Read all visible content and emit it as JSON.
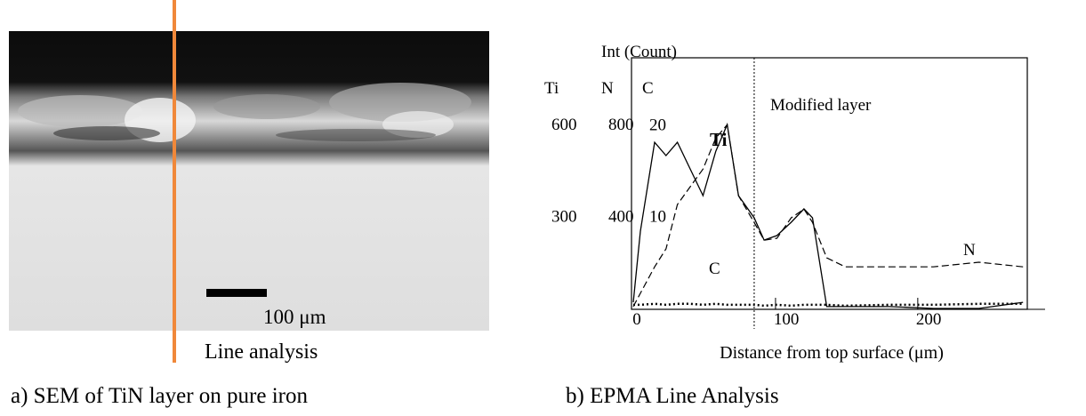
{
  "panel_a": {
    "scale_bar": "100 μm",
    "line_label": "Line analysis",
    "caption": "a) SEM of TiN layer on pure iron"
  },
  "panel_b": {
    "caption": "b) EPMA Line Analysis"
  },
  "chart_data": {
    "type": "line",
    "y_header": "Int (Count)",
    "xlabel": "Distance from top surface (μm)",
    "xlim": [
      0,
      277
    ],
    "xticks": [
      0,
      100,
      200
    ],
    "ylim": [
      0,
      818
    ],
    "yticks": [
      300,
      600
    ],
    "y2lim": [
      0,
      1090
    ],
    "y2ticks": [
      400,
      800
    ],
    "y3lim": [
      0,
      27.3
    ],
    "y3ticks": [
      10,
      20
    ],
    "annotation": {
      "text": "Modified layer",
      "x": 85
    },
    "x": [
      0,
      5,
      15,
      23,
      31,
      40,
      49,
      58,
      66,
      74,
      85,
      92,
      101,
      111,
      120,
      126,
      136,
      149,
      180,
      211,
      243,
      274
    ],
    "series": [
      {
        "name": "Ti",
        "axis": "y",
        "color": "#000000",
        "style": "solid",
        "values": [
          20,
          252,
          542,
          499,
          542,
          455,
          368,
          513,
          600,
          368,
          296,
          223,
          238,
          281,
          325,
          296,
          6,
          6,
          6,
          0,
          0,
          20
        ]
      },
      {
        "name": "N",
        "axis": "y2",
        "color": "#000000",
        "style": "dashed",
        "values": [
          8,
          66,
          181,
          259,
          452,
          529,
          606,
          741,
          799,
          490,
          374,
          297,
          305,
          394,
          432,
          374,
          220,
          181,
          181,
          181,
          201,
          181
        ]
      },
      {
        "name": "C",
        "axis": "y3",
        "color": "#000000",
        "style": "dotted",
        "values": [
          0.4,
          0.4,
          0.5,
          0.4,
          0.5,
          0.5,
          0.4,
          0.5,
          0.4,
          0.4,
          0.4,
          0.3,
          0.4,
          0.3,
          0.4,
          0.4,
          0.4,
          0.3,
          0.4,
          0.4,
          0.5,
          0.5
        ]
      }
    ]
  }
}
